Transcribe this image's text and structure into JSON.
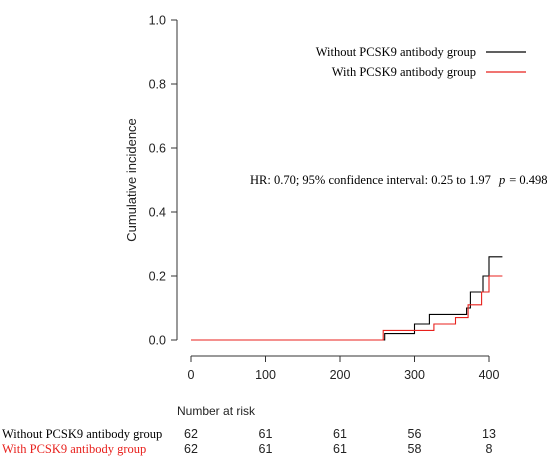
{
  "chart_data": {
    "type": "line",
    "ylabel": "Cumulative incidence",
    "xlim": [
      0,
      420
    ],
    "ylim": [
      0,
      1.0
    ],
    "x_ticks": [
      "0",
      "100",
      "200",
      "300",
      "400"
    ],
    "x_tick_values": [
      0,
      100,
      200,
      300,
      400
    ],
    "y_ticks": [
      "0.0",
      "0.2",
      "0.4",
      "0.6",
      "0.8",
      "1.0"
    ],
    "y_tick_values": [
      0,
      0.2,
      0.4,
      0.6,
      0.8,
      1.0
    ],
    "legend_position": "top-right",
    "annotation": {
      "hr_text": "HR: 0.70; 95% confidence interval: 0.25 to 1.97",
      "p_label": "p",
      "p_text": "= 0.498"
    },
    "series": [
      {
        "name": "Without PCSK9 antibody group",
        "color": "#000000",
        "step_x": [
          0,
          256,
          260,
          300,
          320,
          370,
          375,
          392,
          400,
          418
        ],
        "step_y": [
          0.0,
          0.0,
          0.02,
          0.05,
          0.08,
          0.1,
          0.15,
          0.2,
          0.26,
          0.26
        ]
      },
      {
        "name": "With PCSK9 antibody group",
        "color": "#e8201c",
        "step_x": [
          0,
          258,
          290,
          326,
          355,
          372,
          390,
          400,
          418
        ],
        "step_y": [
          0.0,
          0.03,
          0.03,
          0.05,
          0.07,
          0.11,
          0.15,
          0.2,
          0.2
        ]
      }
    ],
    "risk_table": {
      "title": "Number at risk",
      "rows": [
        {
          "label": "Without PCSK9  antibody group",
          "color": "#000000",
          "values": [
            "62",
            "61",
            "61",
            "56",
            "13"
          ]
        },
        {
          "label": "With PCSK9 antibody group",
          "color": "#e8201c",
          "values": [
            "62",
            "61",
            "61",
            "58",
            "8"
          ]
        }
      ]
    }
  }
}
